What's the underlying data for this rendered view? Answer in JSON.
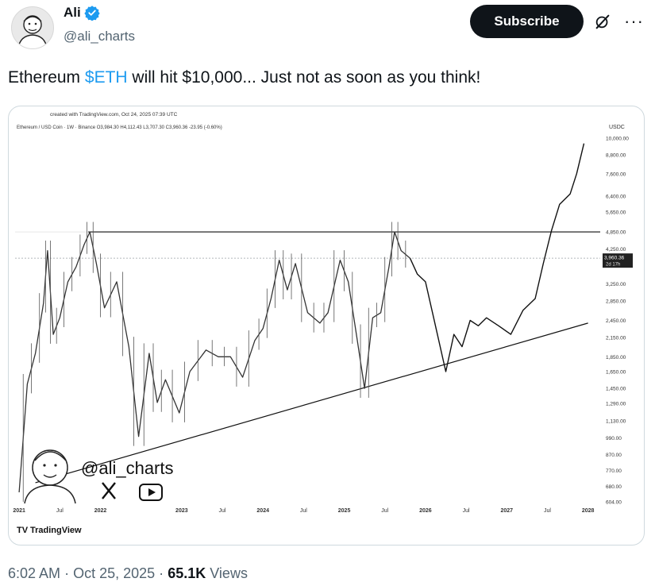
{
  "author": {
    "name": "Ali",
    "handle": "@ali_charts",
    "verified_color": "#1d9bf0"
  },
  "actions": {
    "subscribe_label": "Subscribe",
    "grok_icon": "grok-icon",
    "more_icon": "more-icon"
  },
  "tweet": {
    "text_before": "Ethereum ",
    "cashtag": "$ETH",
    "text_after": " will hit $10,000... Just not as soon as you think!"
  },
  "meta": {
    "time": "6:02 AM",
    "date": "Oct 25, 2025",
    "views_count": "65.1K",
    "views_label": "Views"
  },
  "chart_data": {
    "type": "line",
    "caption": "created with TradingView.com, Oct 24, 2025 07:39 UTC",
    "symbol_line": "Ethereum / USD Coin · 1W · Binance   O3,984.30  H4,112.43  L3,707.30  C3,960.36  -23.95 (-0.60%)",
    "currency": "USDC",
    "y_scale": "log",
    "y_ticks": [
      "10,000.00",
      "8,800.00",
      "7,600.00",
      "6,400.00",
      "5,650.00",
      "4,850.00",
      "4,250.00",
      "3,250.00",
      "2,850.00",
      "2,450.00",
      "2,150.00",
      "1,850.00",
      "1,650.00",
      "1,450.00",
      "1,290.00",
      "1,130.00",
      "990.00",
      "870.00",
      "770.00",
      "680.00",
      "604.00"
    ],
    "x_ticks": [
      "2021",
      "Jul",
      "2022",
      "2023",
      "Jul",
      "2024",
      "Jul",
      "2025",
      "Jul",
      "2026",
      "Jul",
      "2027",
      "Jul",
      "2028"
    ],
    "current_price": "3,960.36",
    "countdown": "2d 17h",
    "resistance_level": 4850,
    "support_line": [
      {
        "x": 2021.2,
        "y": 700
      },
      {
        "x": 2028.0,
        "y": 2400
      }
    ],
    "historical": [
      {
        "x": 2021.0,
        "y": 650
      },
      {
        "x": 2021.1,
        "y": 1500
      },
      {
        "x": 2021.2,
        "y": 1900
      },
      {
        "x": 2021.3,
        "y": 2800
      },
      {
        "x": 2021.35,
        "y": 4200
      },
      {
        "x": 2021.42,
        "y": 2200
      },
      {
        "x": 2021.5,
        "y": 2500
      },
      {
        "x": 2021.6,
        "y": 3300
      },
      {
        "x": 2021.7,
        "y": 3700
      },
      {
        "x": 2021.8,
        "y": 4400
      },
      {
        "x": 2021.87,
        "y": 4850
      },
      {
        "x": 2021.95,
        "y": 3800
      },
      {
        "x": 2022.05,
        "y": 2700
      },
      {
        "x": 2022.2,
        "y": 3300
      },
      {
        "x": 2022.35,
        "y": 2000
      },
      {
        "x": 2022.47,
        "y": 1000
      },
      {
        "x": 2022.6,
        "y": 1900
      },
      {
        "x": 2022.7,
        "y": 1300
      },
      {
        "x": 2022.8,
        "y": 1550
      },
      {
        "x": 2022.97,
        "y": 1200
      },
      {
        "x": 2023.1,
        "y": 1650
      },
      {
        "x": 2023.3,
        "y": 1950
      },
      {
        "x": 2023.45,
        "y": 1850
      },
      {
        "x": 2023.6,
        "y": 1850
      },
      {
        "x": 2023.75,
        "y": 1580
      },
      {
        "x": 2023.9,
        "y": 2100
      },
      {
        "x": 2024.0,
        "y": 2300
      },
      {
        "x": 2024.1,
        "y": 2900
      },
      {
        "x": 2024.2,
        "y": 3900
      },
      {
        "x": 2024.3,
        "y": 3100
      },
      {
        "x": 2024.4,
        "y": 3800
      },
      {
        "x": 2024.55,
        "y": 2600
      },
      {
        "x": 2024.7,
        "y": 2400
      },
      {
        "x": 2024.8,
        "y": 2600
      },
      {
        "x": 2024.95,
        "y": 3900
      },
      {
        "x": 2025.05,
        "y": 3300
      },
      {
        "x": 2025.15,
        "y": 2200
      },
      {
        "x": 2025.25,
        "y": 1450
      },
      {
        "x": 2025.35,
        "y": 2500
      },
      {
        "x": 2025.45,
        "y": 2600
      },
      {
        "x": 2025.55,
        "y": 3700
      },
      {
        "x": 2025.62,
        "y": 4850
      },
      {
        "x": 2025.7,
        "y": 4200
      },
      {
        "x": 2025.81,
        "y": 3960
      }
    ],
    "projection": [
      {
        "x": 2025.81,
        "y": 3960
      },
      {
        "x": 2025.9,
        "y": 3500
      },
      {
        "x": 2026.0,
        "y": 3300
      },
      {
        "x": 2026.1,
        "y": 2500
      },
      {
        "x": 2026.25,
        "y": 1650
      },
      {
        "x": 2026.35,
        "y": 2200
      },
      {
        "x": 2026.45,
        "y": 2000
      },
      {
        "x": 2026.55,
        "y": 2450
      },
      {
        "x": 2026.65,
        "y": 2350
      },
      {
        "x": 2026.75,
        "y": 2500
      },
      {
        "x": 2026.9,
        "y": 2350
      },
      {
        "x": 2027.05,
        "y": 2200
      },
      {
        "x": 2027.2,
        "y": 2650
      },
      {
        "x": 2027.35,
        "y": 2900
      },
      {
        "x": 2027.45,
        "y": 3800
      },
      {
        "x": 2027.55,
        "y": 4900
      },
      {
        "x": 2027.65,
        "y": 6000
      },
      {
        "x": 2027.78,
        "y": 6500
      },
      {
        "x": 2027.86,
        "y": 7600
      },
      {
        "x": 2027.95,
        "y": 9600
      }
    ],
    "watermark": {
      "handle": "@ali_charts",
      "x_icon": "x-logo-icon",
      "play_icon": "play-icon"
    },
    "branding": "TradingView"
  }
}
